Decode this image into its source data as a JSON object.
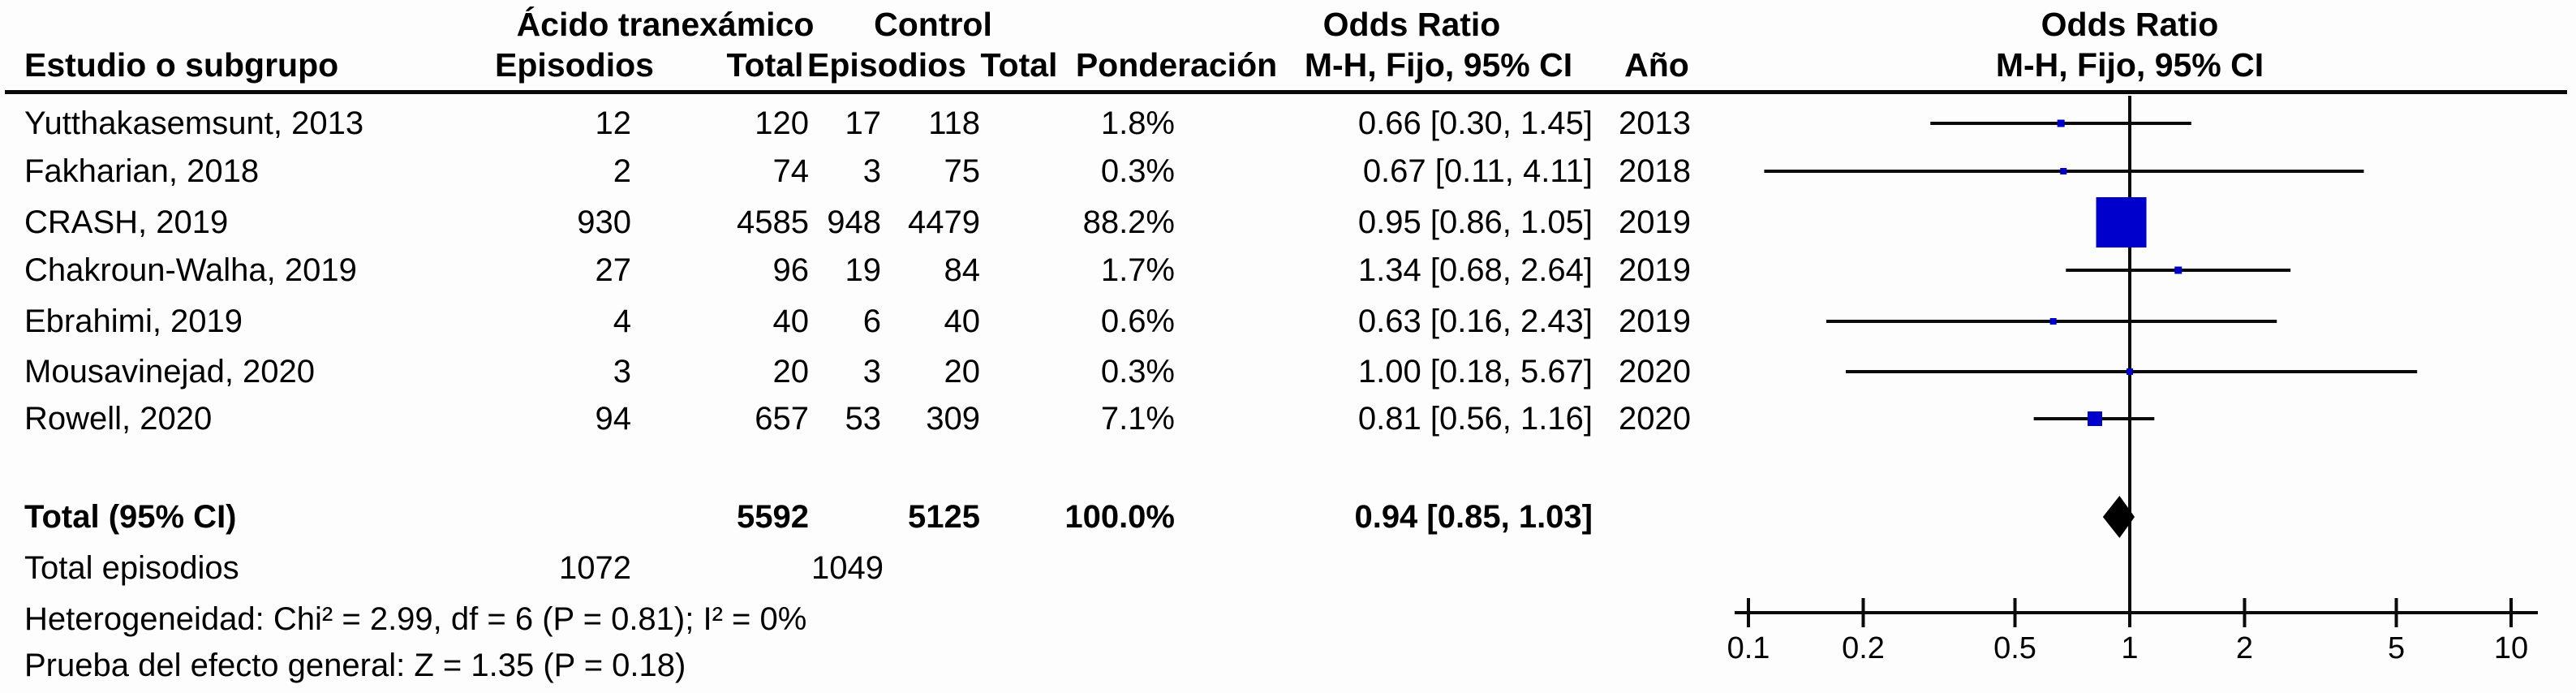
{
  "table": {
    "group_headers": {
      "txa": "Ácido tranexámico",
      "control": "Control",
      "odds_ratio": "Odds Ratio",
      "odds_ratio_plot": "Odds Ratio"
    },
    "column_headers": {
      "study": "Estudio o subgrupo",
      "events_txa": "Episodios",
      "total_txa": "Total",
      "events_control": "Episodios",
      "total_control": "Total",
      "weight": "Ponderación",
      "or_ci": "M-H, Fijo, 95% CI",
      "year": "Año",
      "or_ci_plot": "M-H, Fijo, 95% CI"
    },
    "total_row": {
      "label": "Total (95% CI)",
      "total_txa": "5592",
      "total_control": "5125",
      "weight": "100.0%",
      "or_ci": "0.94 [0.85, 1.03]"
    },
    "events_row": {
      "label": "Total episodios",
      "events_txa": "1072",
      "events_control": "1049"
    },
    "heterogeneity": "Heterogeneidad: Chi² = 2.99, df = 6 (P = 0.81); I² = 0%",
    "overall_effect": "Prueba del efecto general: Z = 1.35 (P = 0.18)"
  },
  "chart_data": {
    "type": "forest",
    "effect_measure": "Odds Ratio",
    "model": "M-H, Fijo, 95% CI",
    "x_scale": "log",
    "axis_range": [
      0.1,
      10
    ],
    "axis_ticks": [
      "0.1",
      "0.2",
      "0.5",
      "1",
      "2",
      "5",
      "10"
    ],
    "studies": [
      {
        "name": "Yutthakasemsunt, 2013",
        "events_txa": "12",
        "total_txa": "120",
        "events_control": "17",
        "total_control": "118",
        "weight": "1.8%",
        "or_ci": "0.66 [0.30, 1.45]",
        "year": "2013",
        "or": 0.66,
        "ci_low": 0.3,
        "ci_high": 1.45,
        "weight_pct": 1.8
      },
      {
        "name": "Fakharian, 2018",
        "events_txa": "2",
        "total_txa": "74",
        "events_control": "3",
        "total_control": "75",
        "weight": "0.3%",
        "or_ci": "0.67 [0.11, 4.11]",
        "year": "2018",
        "or": 0.67,
        "ci_low": 0.11,
        "ci_high": 4.11,
        "weight_pct": 0.3
      },
      {
        "name": "CRASH, 2019",
        "events_txa": "930",
        "total_txa": "4585",
        "events_control": "948",
        "total_control": "4479",
        "weight": "88.2%",
        "or_ci": "0.95 [0.86, 1.05]",
        "year": "2019",
        "or": 0.95,
        "ci_low": 0.86,
        "ci_high": 1.05,
        "weight_pct": 88.2
      },
      {
        "name": "Chakroun-Walha, 2019",
        "events_txa": "27",
        "total_txa": "96",
        "events_control": "19",
        "total_control": "84",
        "weight": "1.7%",
        "or_ci": "1.34 [0.68, 2.64]",
        "year": "2019",
        "or": 1.34,
        "ci_low": 0.68,
        "ci_high": 2.64,
        "weight_pct": 1.7
      },
      {
        "name": "Ebrahimi, 2019",
        "events_txa": "4",
        "total_txa": "40",
        "events_control": "6",
        "total_control": "40",
        "weight": "0.6%",
        "or_ci": "0.63 [0.16, 2.43]",
        "year": "2019",
        "or": 0.63,
        "ci_low": 0.16,
        "ci_high": 2.43,
        "weight_pct": 0.6
      },
      {
        "name": "Mousavinejad, 2020",
        "events_txa": "3",
        "total_txa": "20",
        "events_control": "3",
        "total_control": "20",
        "weight": "0.3%",
        "or_ci": "1.00 [0.18, 5.67]",
        "year": "2020",
        "or": 1.0,
        "ci_low": 0.18,
        "ci_high": 5.67,
        "weight_pct": 0.3
      },
      {
        "name": "Rowell, 2020",
        "events_txa": "94",
        "total_txa": "657",
        "events_control": "53",
        "total_control": "309",
        "weight": "7.1%",
        "or_ci": "0.81 [0.56, 1.16]",
        "year": "2020",
        "or": 0.81,
        "ci_low": 0.56,
        "ci_high": 1.16,
        "weight_pct": 7.1
      }
    ],
    "total": {
      "or": 0.94,
      "ci_low": 0.85,
      "ci_high": 1.03,
      "weight_pct": 100.0
    },
    "colors": {
      "marker": "#0000CC",
      "line": "#0a0a0a",
      "diamond": "#000000",
      "text": "#000000"
    }
  }
}
